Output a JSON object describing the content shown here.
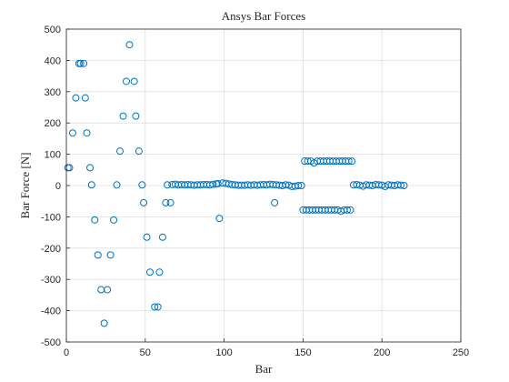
{
  "chart_data": {
    "type": "scatter",
    "title": "Ansys Bar Forces",
    "xlabel": "Bar",
    "ylabel": "Bar Force [N]",
    "xlim": [
      0,
      250
    ],
    "xticks": [
      0,
      50,
      100,
      150,
      200,
      250
    ],
    "ylim": [
      -500,
      500
    ],
    "yticks": [
      -500,
      -400,
      -300,
      -200,
      -100,
      0,
      100,
      200,
      300,
      400,
      500
    ],
    "grid": true,
    "color": "#0072BD",
    "x": [
      1,
      2,
      4,
      6,
      8,
      9,
      11,
      12,
      13,
      15,
      16,
      18,
      20,
      22,
      24,
      26,
      28,
      30,
      32,
      34,
      36,
      38,
      40,
      43,
      44,
      46,
      48,
      49,
      51,
      53,
      56,
      58,
      59,
      61,
      63,
      64,
      66,
      67,
      69,
      71,
      73,
      75,
      77,
      79,
      81,
      83,
      85,
      87,
      89,
      91,
      93,
      95,
      96,
      97,
      99,
      101,
      103,
      105,
      107,
      109,
      111,
      113,
      115,
      117,
      119,
      121,
      123,
      125,
      127,
      129,
      131,
      132,
      133,
      135,
      137,
      139,
      141,
      143,
      145,
      147,
      149,
      150,
      151,
      152,
      153,
      154,
      155,
      156,
      157,
      158,
      159,
      160,
      161,
      162,
      163,
      164,
      165,
      166,
      167,
      168,
      169,
      170,
      171,
      172,
      173,
      174,
      175,
      176,
      177,
      178,
      179,
      180,
      181,
      182,
      184,
      186,
      188,
      190,
      192,
      194,
      196,
      198,
      200,
      202,
      204,
      206,
      208,
      210,
      212,
      214
    ],
    "values": [
      57,
      57,
      168,
      280,
      390,
      390,
      390,
      280,
      168,
      57,
      2,
      -110,
      -222,
      -333,
      -440,
      -333,
      -222,
      -110,
      2,
      110,
      222,
      333,
      450,
      333,
      222,
      110,
      2,
      -55,
      -165,
      -277,
      -388,
      -388,
      -277,
      -165,
      -55,
      2,
      -55,
      3,
      4,
      2,
      3,
      2,
      3,
      2,
      1,
      2,
      2,
      3,
      3,
      2,
      4,
      5,
      6,
      -105,
      8,
      7,
      5,
      3,
      2,
      1,
      1,
      1,
      2,
      1,
      2,
      1,
      2,
      3,
      2,
      4,
      3,
      -55,
      2,
      1,
      0,
      2,
      1,
      -3,
      -2,
      0,
      0,
      -78,
      78,
      -78,
      78,
      -78,
      78,
      -78,
      72,
      -78,
      78,
      -78,
      78,
      -78,
      78,
      -78,
      78,
      -78,
      78,
      -78,
      78,
      -78,
      78,
      -78,
      78,
      -82,
      78,
      -78,
      78,
      -78,
      78,
      -78,
      78,
      2,
      3,
      1,
      -2,
      2,
      1,
      0,
      3,
      2,
      1,
      -3,
      2,
      1,
      0,
      2,
      1,
      0
    ]
  }
}
